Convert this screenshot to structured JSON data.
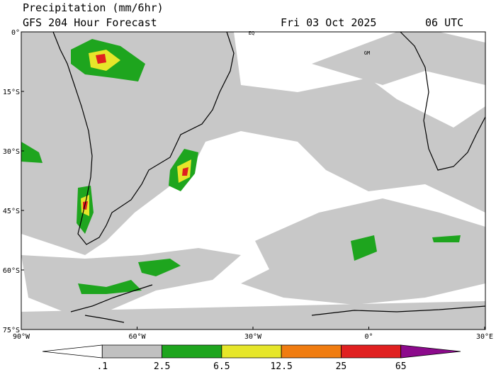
{
  "header": {
    "title": "Precipitation (mm/6hr)",
    "subtitle": "GFS 204 Hour Forecast",
    "date": "Fri 03 Oct 2025",
    "time": "06 UTC"
  },
  "map": {
    "lat_labels": [
      "0°",
      "15°S",
      "30°S",
      "45°S",
      "60°S",
      "75°S"
    ],
    "lon_labels": [
      "90°W",
      "60°W",
      "30°W",
      "0°",
      "30°E"
    ],
    "markers": [
      "EQ",
      "GM"
    ]
  },
  "legend": {
    "labels": [
      ".1",
      "2.5",
      "6.5",
      "12.5",
      "25",
      "65"
    ],
    "colors": [
      "#ffffff",
      "#c0c0c0",
      "#1ea51e",
      "#e6e62a",
      "#f07c10",
      "#e02020",
      "#8c0a8c"
    ]
  }
}
